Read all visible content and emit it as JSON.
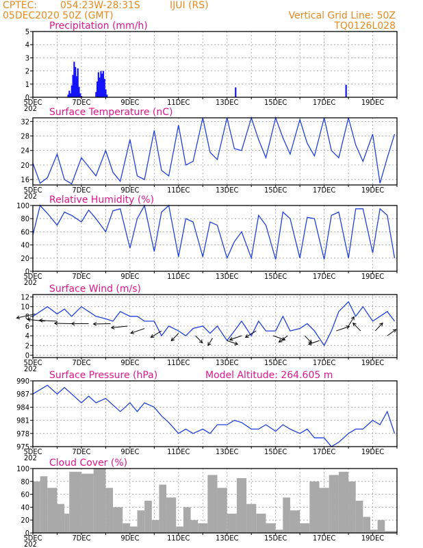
{
  "header": {
    "source": "CPTEC:",
    "coords": "054:23W-28:31S",
    "location": "IJUI (RS)",
    "run": "05DEC2020 50Z (GMT)",
    "grid_note": "Vertical Grid Line: 50Z",
    "model_code": "TQ0126L028"
  },
  "x_axis": {
    "day_ticks": [
      "5DEC",
      "7DEC",
      "9DEC",
      "11DEC",
      "13DEC",
      "15DEC",
      "17DEC",
      "19DEC"
    ],
    "day_start": 5,
    "day_end": 20,
    "year_stub": "202"
  },
  "colors": {
    "series": "#1f3fe0",
    "precip": "#1414ff",
    "cloud": "#a9a9a9",
    "title": "#e0158c",
    "header": "#e88a1e",
    "arrow": "#000000"
  },
  "chart_data": [
    {
      "type": "bar",
      "title": "Precipitation (mm/h)",
      "ylim": [
        0,
        5
      ],
      "yticks": [
        0,
        1,
        2,
        3,
        4,
        5
      ],
      "x_days": [
        6.45,
        6.5,
        6.55,
        6.6,
        6.65,
        6.7,
        6.75,
        6.8,
        6.85,
        6.9,
        6.95,
        7.0,
        7.6,
        7.65,
        7.7,
        7.75,
        7.8,
        7.85,
        7.9,
        7.95,
        8.0,
        8.05,
        13.35,
        17.9
      ],
      "values": [
        0.2,
        0.5,
        0.3,
        0.9,
        1.7,
        2.7,
        2.3,
        1.6,
        2.2,
        0.8,
        0.3,
        0.1,
        0.4,
        1.2,
        1.9,
        1.5,
        2.0,
        1.8,
        2.0,
        1.4,
        0.6,
        0.2,
        0.75,
        0.95
      ]
    },
    {
      "type": "line",
      "title": "Surface Temperature (nC)",
      "ylim": [
        14.5,
        33
      ],
      "yticks": [
        16,
        20,
        24,
        28,
        32
      ],
      "x_days": [
        5.0,
        5.3,
        5.6,
        6.0,
        6.3,
        6.6,
        7.0,
        7.3,
        7.6,
        8.0,
        8.3,
        8.6,
        9.0,
        9.3,
        9.6,
        10.0,
        10.3,
        10.6,
        11.0,
        11.3,
        11.6,
        12.0,
        12.3,
        12.6,
        13.0,
        13.3,
        13.6,
        14.0,
        14.3,
        14.6,
        15.0,
        15.3,
        15.6,
        16.0,
        16.3,
        16.6,
        17.0,
        17.3,
        17.6,
        18.0,
        18.3,
        18.6,
        19.0,
        19.3,
        19.6,
        19.9
      ],
      "values": [
        20.5,
        15.0,
        16.5,
        23.0,
        16.0,
        14.8,
        22.0,
        19.5,
        17.0,
        24.0,
        18.0,
        15.5,
        27.0,
        17.0,
        16.0,
        29.5,
        18.5,
        17.0,
        31.0,
        20.0,
        21.0,
        33.0,
        23.5,
        21.5,
        33.0,
        24.5,
        24.0,
        33.0,
        27.0,
        22.0,
        33.0,
        27.5,
        23.0,
        32.5,
        26.0,
        22.5,
        33.0,
        24.0,
        22.0,
        33.0,
        25.5,
        21.0,
        28.5,
        15.0,
        22.0,
        28.5
      ]
    },
    {
      "type": "line",
      "title": "Relative Humidity (%)",
      "ylim": [
        0,
        100
      ],
      "yticks": [
        0,
        20,
        40,
        60,
        80,
        100
      ],
      "x_days": [
        5.0,
        5.3,
        5.6,
        6.0,
        6.3,
        6.6,
        7.0,
        7.3,
        7.6,
        8.0,
        8.3,
        8.6,
        9.0,
        9.3,
        9.6,
        10.0,
        10.3,
        10.6,
        11.0,
        11.3,
        11.6,
        12.0,
        12.3,
        12.6,
        13.0,
        13.3,
        13.6,
        14.0,
        14.3,
        14.6,
        15.0,
        15.3,
        15.6,
        16.0,
        16.3,
        16.6,
        17.0,
        17.3,
        17.6,
        18.0,
        18.3,
        18.6,
        19.0,
        19.3,
        19.6,
        19.9
      ],
      "values": [
        55,
        100,
        88,
        70,
        90,
        85,
        75,
        93,
        80,
        60,
        92,
        95,
        35,
        80,
        100,
        30,
        90,
        100,
        22,
        80,
        75,
        22,
        75,
        70,
        20,
        45,
        60,
        20,
        85,
        70,
        18,
        90,
        80,
        20,
        82,
        80,
        18,
        85,
        90,
        20,
        95,
        95,
        28,
        95,
        85,
        20
      ]
    },
    {
      "type": "line",
      "title": "Surface Wind (m/s)",
      "ylim": [
        -0.5,
        12.5
      ],
      "yticks": [
        0,
        2,
        4,
        6,
        8,
        10,
        12
      ],
      "x_days": [
        5.0,
        5.3,
        5.6,
        6.0,
        6.3,
        6.6,
        7.0,
        7.3,
        7.6,
        8.0,
        8.3,
        8.6,
        9.0,
        9.3,
        9.6,
        10.0,
        10.3,
        10.6,
        11.0,
        11.3,
        11.6,
        12.0,
        12.3,
        12.6,
        13.0,
        13.3,
        13.6,
        14.0,
        14.3,
        14.6,
        15.0,
        15.3,
        15.6,
        16.0,
        16.3,
        16.6,
        17.0,
        17.3,
        17.6,
        18.0,
        18.3,
        18.6,
        19.0,
        19.3,
        19.6,
        19.9
      ],
      "values": [
        8,
        9,
        10,
        8.5,
        9.5,
        8,
        10,
        9,
        8,
        7.5,
        7,
        9,
        8,
        8,
        7,
        7,
        4,
        6,
        5,
        4,
        5.5,
        6,
        4.5,
        6,
        3,
        5,
        7,
        4,
        7,
        5,
        5,
        8,
        5,
        5.5,
        6.5,
        5,
        2,
        5,
        9,
        11,
        8,
        10,
        7,
        8,
        9,
        7
      ],
      "arrows": [
        {
          "d": 5.1,
          "s": 8.5,
          "dir": 70
        },
        {
          "d": 5.5,
          "s": 7,
          "dir": 100
        },
        {
          "d": 6.0,
          "s": 7,
          "dir": 95
        },
        {
          "d": 6.6,
          "s": 6.5,
          "dir": 92
        },
        {
          "d": 7.3,
          "s": 6.5,
          "dir": 90
        },
        {
          "d": 8.2,
          "s": 6.5,
          "dir": 88
        },
        {
          "d": 8.9,
          "s": 6,
          "dir": 80
        },
        {
          "d": 9.6,
          "s": 5.5,
          "dir": 60
        },
        {
          "d": 10.3,
          "s": 5,
          "dir": 45
        },
        {
          "d": 11.0,
          "s": 4.5,
          "dir": 30
        },
        {
          "d": 11.7,
          "s": 4,
          "dir": 330
        },
        {
          "d": 12.4,
          "s": 3.5,
          "dir": 20
        },
        {
          "d": 13.0,
          "s": 3,
          "dir": 300
        },
        {
          "d": 13.6,
          "s": 4,
          "dir": 60
        },
        {
          "d": 14.2,
          "s": 5,
          "dir": 45
        },
        {
          "d": 14.9,
          "s": 4,
          "dir": 300
        },
        {
          "d": 15.5,
          "s": 4,
          "dir": 40
        },
        {
          "d": 16.2,
          "s": 4,
          "dir": 330
        },
        {
          "d": 16.8,
          "s": 3,
          "dir": 60
        },
        {
          "d": 17.5,
          "s": 5,
          "dir": 240
        },
        {
          "d": 18.0,
          "s": 6,
          "dir": 200
        },
        {
          "d": 18.5,
          "s": 5,
          "dir": 150
        },
        {
          "d": 19.1,
          "s": 5,
          "dir": 210
        },
        {
          "d": 19.6,
          "s": 4,
          "dir": 220
        }
      ]
    },
    {
      "type": "line",
      "title": "Surface Pressure (hPa)",
      "annotation": "Model Altitude: 264.605 m",
      "ylim": [
        975,
        990
      ],
      "yticks": [
        975,
        978,
        981,
        984,
        987,
        990
      ],
      "x_days": [
        5.0,
        5.3,
        5.6,
        6.0,
        6.3,
        6.6,
        7.0,
        7.3,
        7.6,
        8.0,
        8.3,
        8.6,
        9.0,
        9.3,
        9.6,
        10.0,
        10.3,
        10.6,
        11.0,
        11.3,
        11.6,
        12.0,
        12.3,
        12.6,
        13.0,
        13.3,
        13.6,
        14.0,
        14.3,
        14.6,
        15.0,
        15.3,
        15.6,
        16.0,
        16.3,
        16.6,
        17.0,
        17.3,
        17.6,
        18.0,
        18.3,
        18.6,
        19.0,
        19.3,
        19.6,
        19.9
      ],
      "values": [
        987,
        988,
        989,
        987,
        988.5,
        987,
        985,
        986.5,
        985,
        986,
        984.5,
        983,
        985,
        983,
        985,
        984,
        982,
        980.5,
        978,
        979,
        978,
        979,
        978,
        980,
        980,
        981,
        980.5,
        979,
        979,
        980,
        978.5,
        980,
        979,
        978,
        979,
        977,
        977,
        975,
        976,
        978,
        979,
        979,
        981,
        980,
        983,
        978
      ]
    },
    {
      "type": "bar",
      "title": "Cloud Cover (%)",
      "ylim": [
        0,
        100
      ],
      "yticks": [
        0,
        20,
        40,
        60,
        80,
        100
      ],
      "segments": [
        {
          "x0": 5.0,
          "x1": 5.3,
          "v": 80
        },
        {
          "x0": 5.3,
          "x1": 5.6,
          "v": 88
        },
        {
          "x0": 5.6,
          "x1": 6.0,
          "v": 70
        },
        {
          "x0": 6.0,
          "x1": 6.3,
          "v": 45
        },
        {
          "x0": 6.3,
          "x1": 6.5,
          "v": 30
        },
        {
          "x0": 6.5,
          "x1": 7.0,
          "v": 95
        },
        {
          "x0": 7.0,
          "x1": 7.5,
          "v": 92
        },
        {
          "x0": 7.5,
          "x1": 8.0,
          "v": 100
        },
        {
          "x0": 8.0,
          "x1": 8.3,
          "v": 70
        },
        {
          "x0": 8.3,
          "x1": 8.7,
          "v": 40
        },
        {
          "x0": 8.7,
          "x1": 9.0,
          "v": 15
        },
        {
          "x0": 9.0,
          "x1": 9.3,
          "v": 10
        },
        {
          "x0": 9.3,
          "x1": 9.6,
          "v": 35
        },
        {
          "x0": 9.6,
          "x1": 9.9,
          "v": 50
        },
        {
          "x0": 9.9,
          "x1": 10.2,
          "v": 20
        },
        {
          "x0": 10.2,
          "x1": 10.5,
          "v": 75
        },
        {
          "x0": 10.5,
          "x1": 10.9,
          "v": 55
        },
        {
          "x0": 10.9,
          "x1": 11.2,
          "v": 10
        },
        {
          "x0": 11.2,
          "x1": 11.5,
          "v": 40
        },
        {
          "x0": 11.5,
          "x1": 11.8,
          "v": 20
        },
        {
          "x0": 11.8,
          "x1": 12.2,
          "v": 15
        },
        {
          "x0": 12.2,
          "x1": 12.6,
          "v": 90
        },
        {
          "x0": 12.6,
          "x1": 13.0,
          "v": 70
        },
        {
          "x0": 13.0,
          "x1": 13.4,
          "v": 30
        },
        {
          "x0": 13.4,
          "x1": 13.8,
          "v": 85
        },
        {
          "x0": 13.8,
          "x1": 14.2,
          "v": 45
        },
        {
          "x0": 14.2,
          "x1": 14.6,
          "v": 30
        },
        {
          "x0": 14.6,
          "x1": 15.0,
          "v": 15
        },
        {
          "x0": 15.0,
          "x1": 15.3,
          "v": 5
        },
        {
          "x0": 15.3,
          "x1": 15.6,
          "v": 55
        },
        {
          "x0": 15.6,
          "x1": 16.0,
          "v": 35
        },
        {
          "x0": 16.0,
          "x1": 16.4,
          "v": 15
        },
        {
          "x0": 16.4,
          "x1": 16.8,
          "v": 80
        },
        {
          "x0": 16.8,
          "x1": 17.2,
          "v": 70
        },
        {
          "x0": 17.2,
          "x1": 17.6,
          "v": 90
        },
        {
          "x0": 17.6,
          "x1": 18.0,
          "v": 95
        },
        {
          "x0": 18.0,
          "x1": 18.3,
          "v": 80
        },
        {
          "x0": 18.3,
          "x1": 18.6,
          "v": 50
        },
        {
          "x0": 18.6,
          "x1": 18.9,
          "v": 25
        },
        {
          "x0": 18.9,
          "x1": 19.2,
          "v": 5
        },
        {
          "x0": 19.2,
          "x1": 19.5,
          "v": 20
        },
        {
          "x0": 19.5,
          "x1": 20.0,
          "v": 3
        }
      ]
    }
  ]
}
